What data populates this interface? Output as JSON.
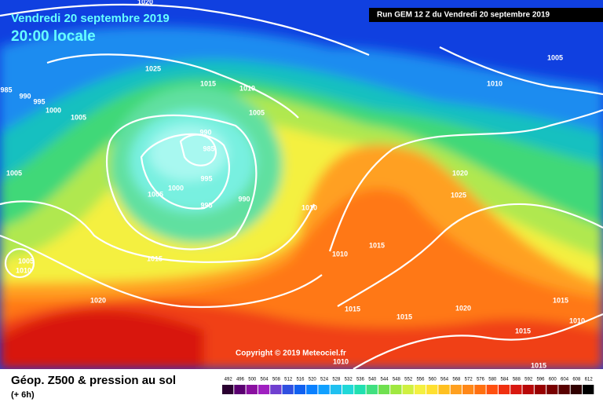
{
  "header": {
    "date": "Vendredi 20 septembre 2019",
    "time": "20:00 locale",
    "run": "Run GEM 12 Z du Vendredi 20 septembre 2019"
  },
  "map": {
    "isobar_labels": [
      "1020",
      "1025",
      "1015",
      "1010",
      "1005",
      "985",
      "990",
      "995",
      "1000",
      "1005",
      "990",
      "985",
      "995",
      "1000",
      "1005",
      "995",
      "990",
      "1005",
      "1005",
      "1015",
      "1020",
      "1010",
      "1010",
      "1015",
      "1020",
      "1025",
      "1015",
      "1015",
      "1020",
      "1015",
      "1010",
      "1015",
      "1015",
      "1010",
      "1005",
      "1010",
      "1010"
    ],
    "copyright": "Copyright © 2019 Meteociel.fr"
  },
  "footer": {
    "title": "Géop. Z500 & pression au sol",
    "step": "(+ 6h)",
    "scale": [
      "492",
      "496",
      "500",
      "504",
      "508",
      "512",
      "516",
      "520",
      "524",
      "528",
      "532",
      "536",
      "540",
      "544",
      "548",
      "552",
      "556",
      "560",
      "564",
      "568",
      "572",
      "576",
      "580",
      "584",
      "588",
      "592",
      "596",
      "600",
      "604",
      "608",
      "612"
    ]
  }
}
